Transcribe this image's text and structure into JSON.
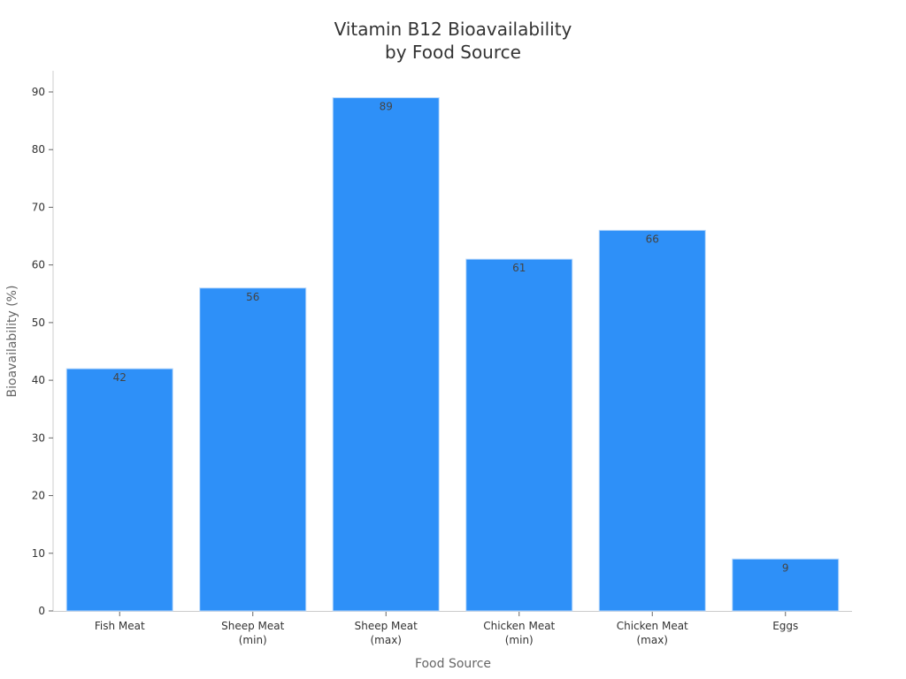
{
  "chart_data": {
    "type": "bar",
    "title": [
      "Vitamin B12 Bioavailability",
      "by Food Source"
    ],
    "xlabel": "Food Source",
    "ylabel": "Bioavailability (%)",
    "categories": [
      [
        "Fish Meat"
      ],
      [
        "Sheep Meat",
        "(min)"
      ],
      [
        "Sheep Meat",
        "(max)"
      ],
      [
        "Chicken Meat",
        "(min)"
      ],
      [
        "Chicken Meat",
        "(max)"
      ],
      [
        "Eggs"
      ]
    ],
    "values": [
      42,
      56,
      89,
      61,
      66,
      9
    ],
    "ylim": [
      0,
      90
    ],
    "yticks": [
      0,
      10,
      20,
      30,
      40,
      50,
      60,
      70,
      80,
      90
    ],
    "grid": false,
    "data_labels": true,
    "bar_color": "#2e90f8"
  }
}
